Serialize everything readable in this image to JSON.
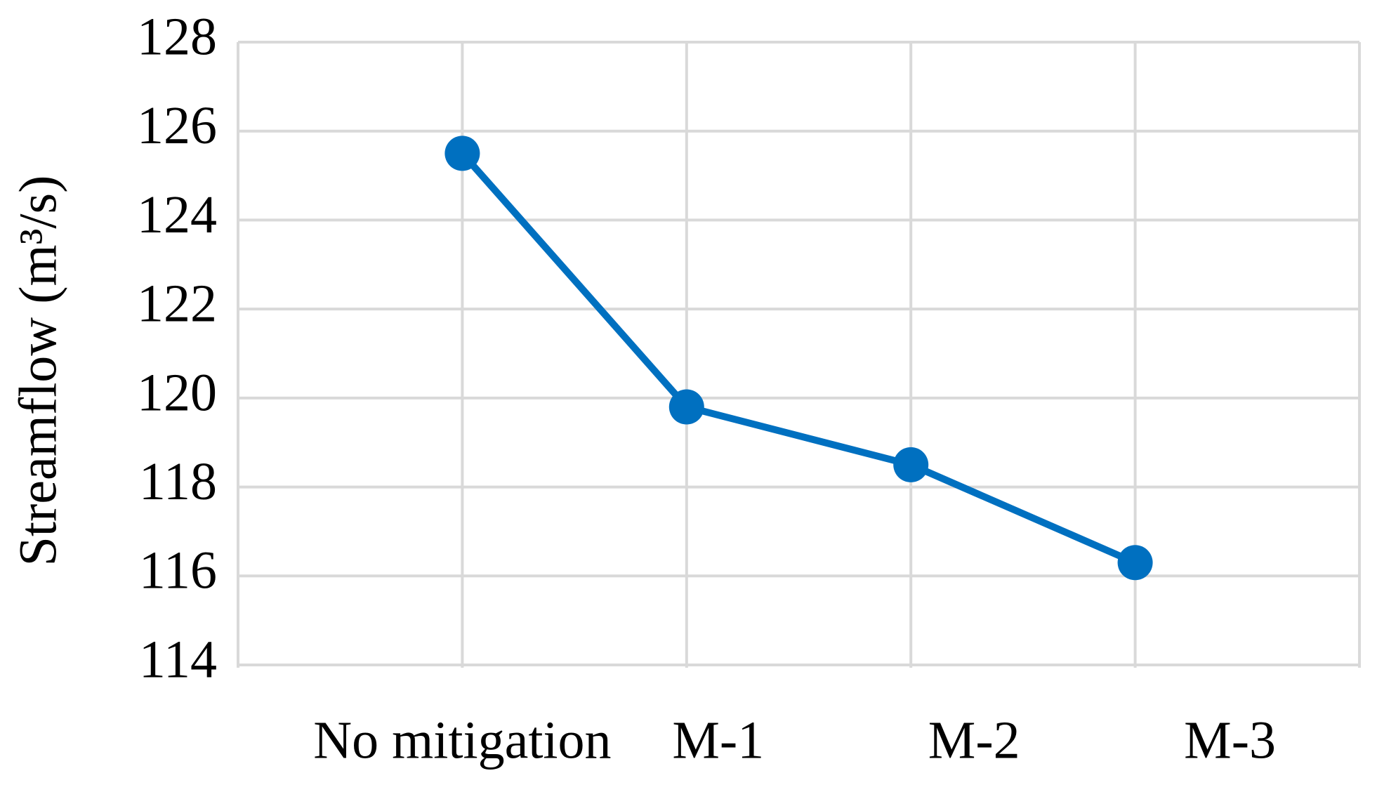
{
  "chart_data": {
    "type": "line",
    "y_label": "Streamflow (m³/s)",
    "categories": [
      "No mitigation",
      "M-1",
      "M-2",
      "M-3"
    ],
    "values": [
      125.5,
      119.8,
      118.5,
      116.3
    ],
    "color": "#0070c0",
    "ylim": [
      114,
      128
    ],
    "yticks": [
      114,
      116,
      118,
      120,
      122,
      124,
      126,
      128
    ],
    "grid": true
  }
}
